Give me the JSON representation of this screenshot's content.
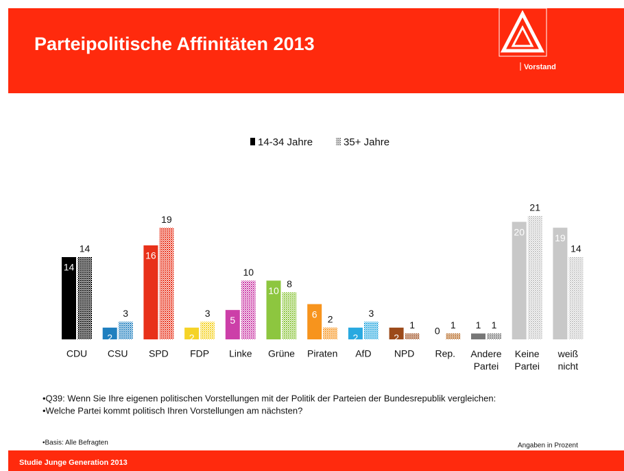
{
  "header": {
    "title": "Parteipolitische Affinitäten 2013",
    "logo_caption": "Vorstand"
  },
  "chart_data": {
    "type": "bar",
    "categories": [
      "CDU",
      "CSU",
      "SPD",
      "FDP",
      "Linke",
      "Grüne",
      "Piraten",
      "AfD",
      "NPD",
      "Rep.",
      "Andere Partei",
      "Keine Partei",
      "weiß nicht"
    ],
    "category_colors": [
      "#000000",
      "#1f7fbf",
      "#e8311a",
      "#f5d327",
      "#cc3fa8",
      "#8dc63f",
      "#f7941d",
      "#29a9e0",
      "#9c4a1a",
      "#b5651d",
      "#777777",
      "#c8c8c8",
      "#c8c8c8"
    ],
    "series": [
      {
        "name": "14-34 Jahre",
        "color": "#000000",
        "values": [
          14,
          2,
          16,
          2,
          5,
          10,
          6,
          2,
          2,
          0,
          1,
          20,
          19
        ]
      },
      {
        "name": "35+ Jahre",
        "color": "#888888",
        "values": [
          14,
          3,
          19,
          3,
          10,
          8,
          2,
          3,
          1,
          1,
          1,
          21,
          14
        ]
      }
    ]
  },
  "notes": {
    "question_1": "•Q39: Wenn Sie Ihre eigenen politischen Vorstellungen mit der Politik der Parteien der Bundesrepublik vergleichen:",
    "question_2": "•Welche Partei kommt politisch Ihren Vorstellungen am nächsten?",
    "basis": "•Basis: Alle Befragten",
    "unit_note": "Angaben in Prozent"
  },
  "footer": {
    "text": "Studie Junge Generation 2013"
  }
}
